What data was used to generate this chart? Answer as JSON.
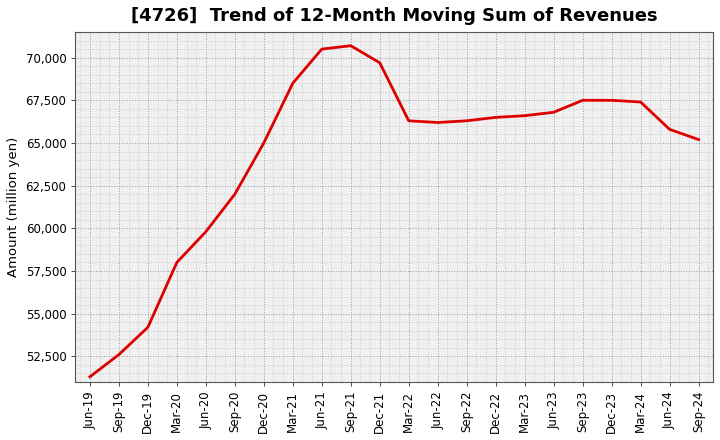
{
  "title": "[4726]  Trend of 12-Month Moving Sum of Revenues",
  "ylabel": "Amount (million yen)",
  "line_color": "#dd0000",
  "background_color": "#ffffff",
  "plot_bg_color": "#f0f0f0",
  "grid_color_major": "#aaaaaa",
  "grid_color_minor": "#cccccc",
  "x_labels": [
    "Jun-19",
    "Sep-19",
    "Dec-19",
    "Mar-20",
    "Jun-20",
    "Sep-20",
    "Dec-20",
    "Mar-21",
    "Jun-21",
    "Sep-21",
    "Dec-21",
    "Mar-22",
    "Jun-22",
    "Sep-22",
    "Dec-22",
    "Mar-23",
    "Jun-23",
    "Sep-23",
    "Dec-23",
    "Mar-24",
    "Jun-24",
    "Sep-24"
  ],
  "y_values": [
    51300,
    52600,
    54200,
    58000,
    59800,
    62000,
    65000,
    68500,
    70500,
    70700,
    69700,
    66300,
    66200,
    66300,
    66500,
    66600,
    66800,
    67500,
    67500,
    67400,
    65800,
    65200
  ],
  "ylim": [
    51000,
    71500
  ],
  "yticks": [
    52500,
    55000,
    57500,
    60000,
    62500,
    65000,
    67500,
    70000
  ],
  "title_fontsize": 13,
  "axis_fontsize": 8.5,
  "ylabel_fontsize": 9.5,
  "linewidth": 2.0
}
